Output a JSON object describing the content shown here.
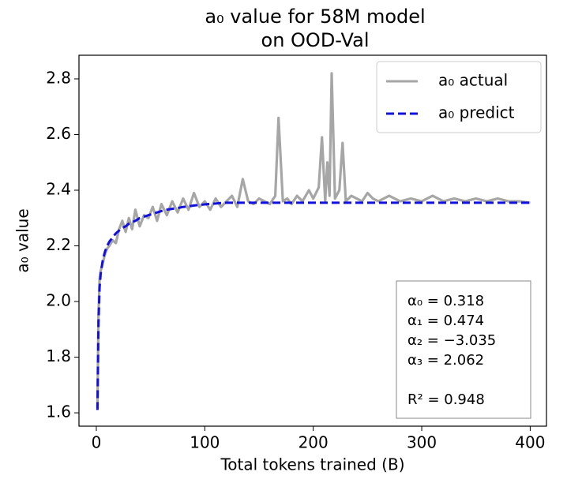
{
  "chart_data": {
    "type": "line",
    "title": [
      "a₀ value for 58M model",
      "on OOD-Val"
    ],
    "xlabel": "Total tokens trained (B)",
    "ylabel": "a₀ value",
    "x": [
      1,
      2,
      3,
      4,
      6,
      8,
      10,
      12,
      15,
      18,
      21,
      24,
      27,
      30,
      33,
      36,
      40,
      44,
      48,
      52,
      56,
      60,
      65,
      70,
      75,
      80,
      85,
      90,
      95,
      100,
      105,
      110,
      115,
      120,
      125,
      130,
      135,
      140,
      145,
      150,
      155,
      160,
      165,
      168,
      172,
      176,
      180,
      185,
      190,
      196,
      200,
      205,
      208,
      211,
      213,
      215,
      217,
      220,
      224,
      227,
      230,
      235,
      240,
      245,
      250,
      255,
      260,
      270,
      280,
      290,
      300,
      310,
      320,
      330,
      340,
      350,
      360,
      370,
      380,
      390,
      400
    ],
    "series": [
      {
        "name": "a₀ actual",
        "color": "#a6a6a6",
        "dash": false,
        "values": [
          1.62,
          1.95,
          2.08,
          2.11,
          2.14,
          2.17,
          2.19,
          2.2,
          2.22,
          2.21,
          2.26,
          2.29,
          2.25,
          2.3,
          2.26,
          2.33,
          2.27,
          2.31,
          2.3,
          2.34,
          2.29,
          2.35,
          2.31,
          2.36,
          2.32,
          2.37,
          2.33,
          2.39,
          2.34,
          2.36,
          2.33,
          2.37,
          2.34,
          2.36,
          2.38,
          2.34,
          2.44,
          2.36,
          2.35,
          2.37,
          2.36,
          2.35,
          2.38,
          2.66,
          2.36,
          2.37,
          2.35,
          2.38,
          2.36,
          2.4,
          2.37,
          2.41,
          2.59,
          2.36,
          2.5,
          2.38,
          2.82,
          2.37,
          2.4,
          2.57,
          2.36,
          2.38,
          2.37,
          2.36,
          2.39,
          2.37,
          2.36,
          2.38,
          2.36,
          2.37,
          2.36,
          2.38,
          2.36,
          2.37,
          2.36,
          2.37,
          2.36,
          2.37,
          2.36,
          2.36,
          2.355
        ]
      },
      {
        "name": "a₀ predict",
        "color": "#1010e0",
        "dash": true,
        "values": [
          1.61,
          1.92,
          2.05,
          2.1,
          2.15,
          2.18,
          2.2,
          2.215,
          2.23,
          2.245,
          2.255,
          2.265,
          2.27,
          2.28,
          2.285,
          2.29,
          2.3,
          2.305,
          2.31,
          2.315,
          2.32,
          2.325,
          2.33,
          2.333,
          2.336,
          2.34,
          2.342,
          2.345,
          2.347,
          2.349,
          2.351,
          2.352,
          2.354,
          2.355,
          2.355,
          2.355,
          2.355,
          2.355,
          2.355,
          2.355,
          2.355,
          2.355,
          2.355,
          2.355,
          2.355,
          2.355,
          2.355,
          2.355,
          2.355,
          2.355,
          2.355,
          2.355,
          2.355,
          2.355,
          2.355,
          2.355,
          2.355,
          2.355,
          2.355,
          2.355,
          2.355,
          2.355,
          2.355,
          2.355,
          2.355,
          2.355,
          2.355,
          2.355,
          2.355,
          2.355,
          2.355,
          2.355,
          2.355,
          2.355,
          2.355,
          2.355,
          2.355,
          2.355,
          2.355,
          2.355,
          2.355
        ]
      }
    ],
    "xlim": [
      -16,
      415
    ],
    "ylim": [
      1.552,
      2.885
    ],
    "xticks": [
      0,
      100,
      200,
      300,
      400
    ],
    "yticks": [
      1.6,
      1.8,
      {
        "value": 2.0,
        "label": "2.0"
      },
      2.2,
      2.4,
      2.6,
      2.8
    ],
    "legend": "upper right",
    "annotations": [
      "α₀ = 0.318",
      "α₁ = 0.474",
      "α₂ = −3.035",
      "α₃ = 2.062",
      "R² = 0.948"
    ]
  }
}
